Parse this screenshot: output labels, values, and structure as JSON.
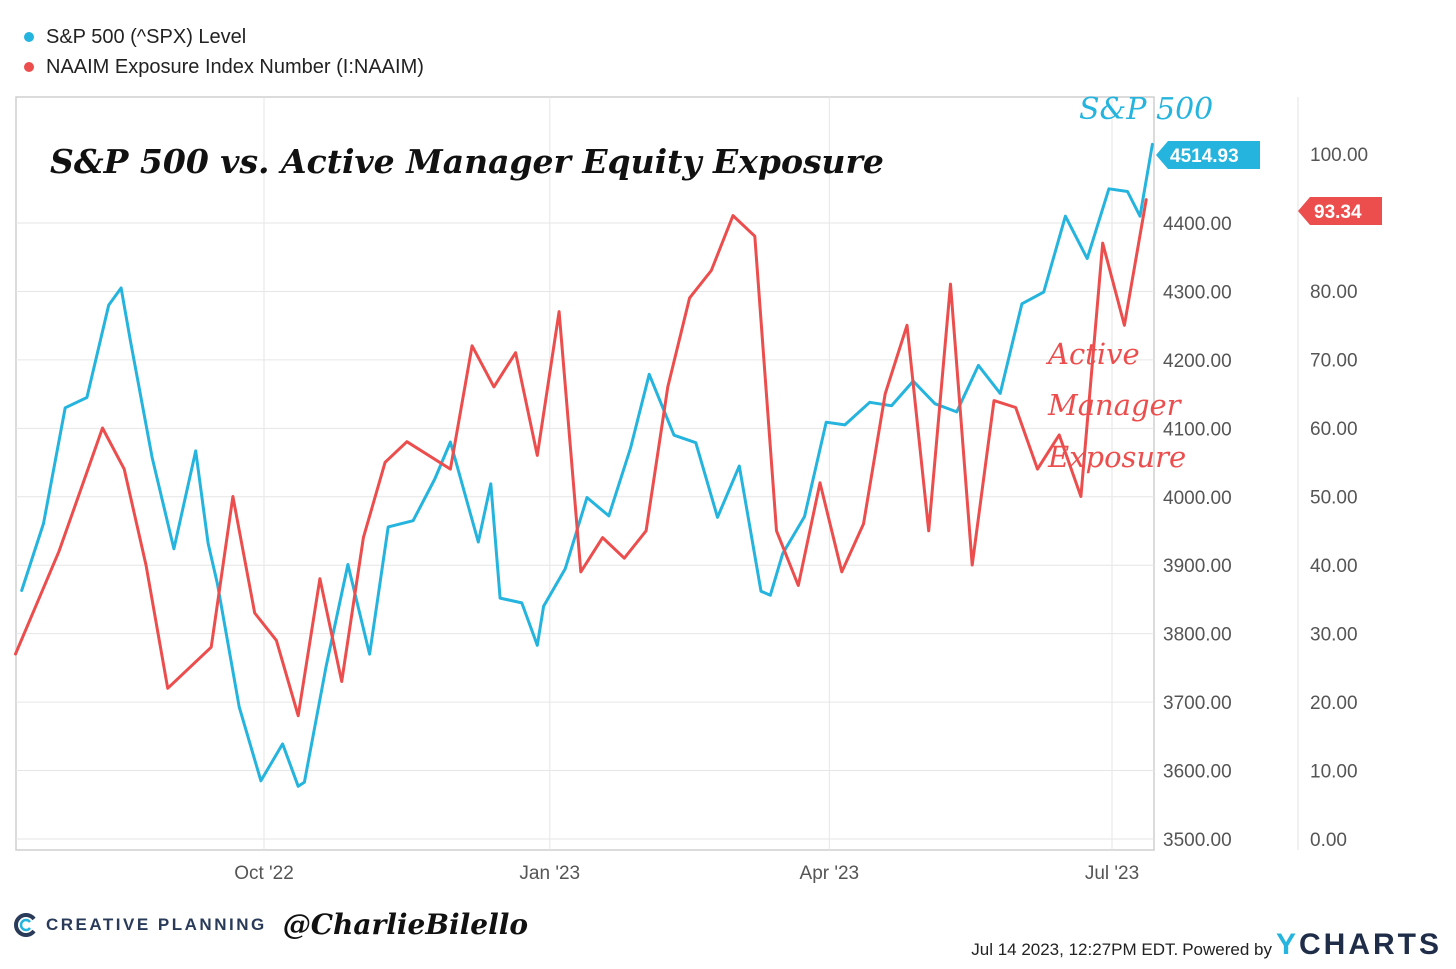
{
  "legend": [
    {
      "label": "S&P 500 (^SPX) Level",
      "color": "#25b4dd"
    },
    {
      "label": "NAAIM Exposure Index Number (I:NAAIM)",
      "color": "#ec4d4d"
    }
  ],
  "annotations": {
    "title": "S&P 500 vs. Active Manager Equity Exposure",
    "spx_label": "S&P 500",
    "naaim_label_lines": [
      "Active",
      "Manager",
      "Exposure"
    ]
  },
  "chart_data": {
    "type": "line",
    "x_ticks": [
      "Oct '22",
      "Jan '23",
      "Apr '23",
      "Jul '23"
    ],
    "left_axis": {
      "ticks": [
        "4400.00",
        "4300.00",
        "4200.00",
        "4100.00",
        "4000.00",
        "3900.00",
        "3800.00",
        "3700.00",
        "3600.00",
        "3500.00"
      ],
      "ylim": [
        3500,
        4600
      ]
    },
    "right_axis": {
      "ticks": [
        "100.00",
        "80.00",
        "70.00",
        "60.00",
        "50.00",
        "40.00",
        "30.00",
        "20.00",
        "10.00",
        "0.00"
      ],
      "ylim": [
        0,
        100
      ]
    },
    "series": [
      {
        "name": "S&P 500 (^SPX) Level",
        "color": "#25b4dd",
        "axis": "left",
        "last_value": "4514.93",
        "x": [
          "2022-07-15",
          "2022-07-22",
          "2022-07-29",
          "2022-08-05",
          "2022-08-12",
          "2022-08-16",
          "2022-08-19",
          "2022-08-26",
          "2022-09-02",
          "2022-09-09",
          "2022-09-13",
          "2022-09-16",
          "2022-09-23",
          "2022-09-30",
          "2022-10-07",
          "2022-10-12",
          "2022-10-14",
          "2022-10-21",
          "2022-10-28",
          "2022-11-04",
          "2022-11-10",
          "2022-11-18",
          "2022-11-25",
          "2022-11-30",
          "2022-12-09",
          "2022-12-13",
          "2022-12-16",
          "2022-12-23",
          "2022-12-28",
          "2022-12-30",
          "2023-01-06",
          "2023-01-13",
          "2023-01-20",
          "2023-01-27",
          "2023-02-02",
          "2023-02-10",
          "2023-02-17",
          "2023-02-24",
          "2023-03-03",
          "2023-03-10",
          "2023-03-13",
          "2023-03-17",
          "2023-03-24",
          "2023-03-31",
          "2023-04-06",
          "2023-04-14",
          "2023-04-21",
          "2023-04-28",
          "2023-05-05",
          "2023-05-12",
          "2023-05-19",
          "2023-05-26",
          "2023-06-02",
          "2023-06-09",
          "2023-06-16",
          "2023-06-23",
          "2023-06-30",
          "2023-07-06",
          "2023-07-10",
          "2023-07-14"
        ],
        "values": [
          3863,
          3961,
          4130,
          4145,
          4280,
          4305,
          4228,
          4057,
          3924,
          4067,
          3932,
          3873,
          3693,
          3585,
          3639,
          3577,
          3583,
          3752,
          3901,
          3770,
          3956,
          3965,
          4026,
          4080,
          3934,
          4019,
          3852,
          3845,
          3783,
          3840,
          3895,
          3999,
          3972,
          4071,
          4179,
          4090,
          4079,
          3970,
          4045,
          3862,
          3856,
          3917,
          3971,
          4109,
          4105,
          4138,
          4133,
          4169,
          4136,
          4124,
          4192,
          4151,
          4282,
          4299,
          4410,
          4348,
          4450,
          4446,
          4410,
          4514.93
        ]
      },
      {
        "name": "NAAIM Exposure Index Number (I:NAAIM)",
        "color": "#ec4d4d",
        "axis": "right",
        "last_value": "93.34",
        "x": [
          "2022-07-13",
          "2022-07-27",
          "2022-08-10",
          "2022-08-17",
          "2022-08-24",
          "2022-08-31",
          "2022-09-14",
          "2022-09-21",
          "2022-09-28",
          "2022-10-05",
          "2022-10-12",
          "2022-10-19",
          "2022-10-26",
          "2022-11-02",
          "2022-11-09",
          "2022-11-16",
          "2022-11-30",
          "2022-12-07",
          "2022-12-14",
          "2022-12-21",
          "2022-12-28",
          "2023-01-04",
          "2023-01-11",
          "2023-01-18",
          "2023-01-25",
          "2023-02-01",
          "2023-02-08",
          "2023-02-15",
          "2023-02-22",
          "2023-03-01",
          "2023-03-08",
          "2023-03-15",
          "2023-03-22",
          "2023-03-29",
          "2023-04-05",
          "2023-04-12",
          "2023-04-19",
          "2023-04-26",
          "2023-05-03",
          "2023-05-10",
          "2023-05-17",
          "2023-05-24",
          "2023-05-31",
          "2023-06-07",
          "2023-06-14",
          "2023-06-21",
          "2023-06-28",
          "2023-07-05",
          "2023-07-12"
        ],
        "values": [
          27,
          42,
          60,
          54,
          40,
          22,
          28,
          50,
          33,
          29,
          18,
          38,
          23,
          44,
          55,
          58,
          54,
          72,
          66,
          71,
          56,
          77,
          39,
          44,
          41,
          45,
          66,
          79,
          83,
          91,
          88,
          45,
          37,
          52,
          39,
          46,
          65,
          75,
          45,
          81,
          40,
          64,
          63,
          54,
          59,
          50,
          87,
          75,
          93.34
        ]
      }
    ]
  },
  "footer": {
    "brand": "CREATIVE PLANNING",
    "handle": "@CharlieBilello",
    "timestamp": "Jul 14 2023, 12:27PM EDT.",
    "powered_by": "Powered by",
    "ycharts_y": "Y",
    "ycharts_rest": "CHARTS"
  }
}
